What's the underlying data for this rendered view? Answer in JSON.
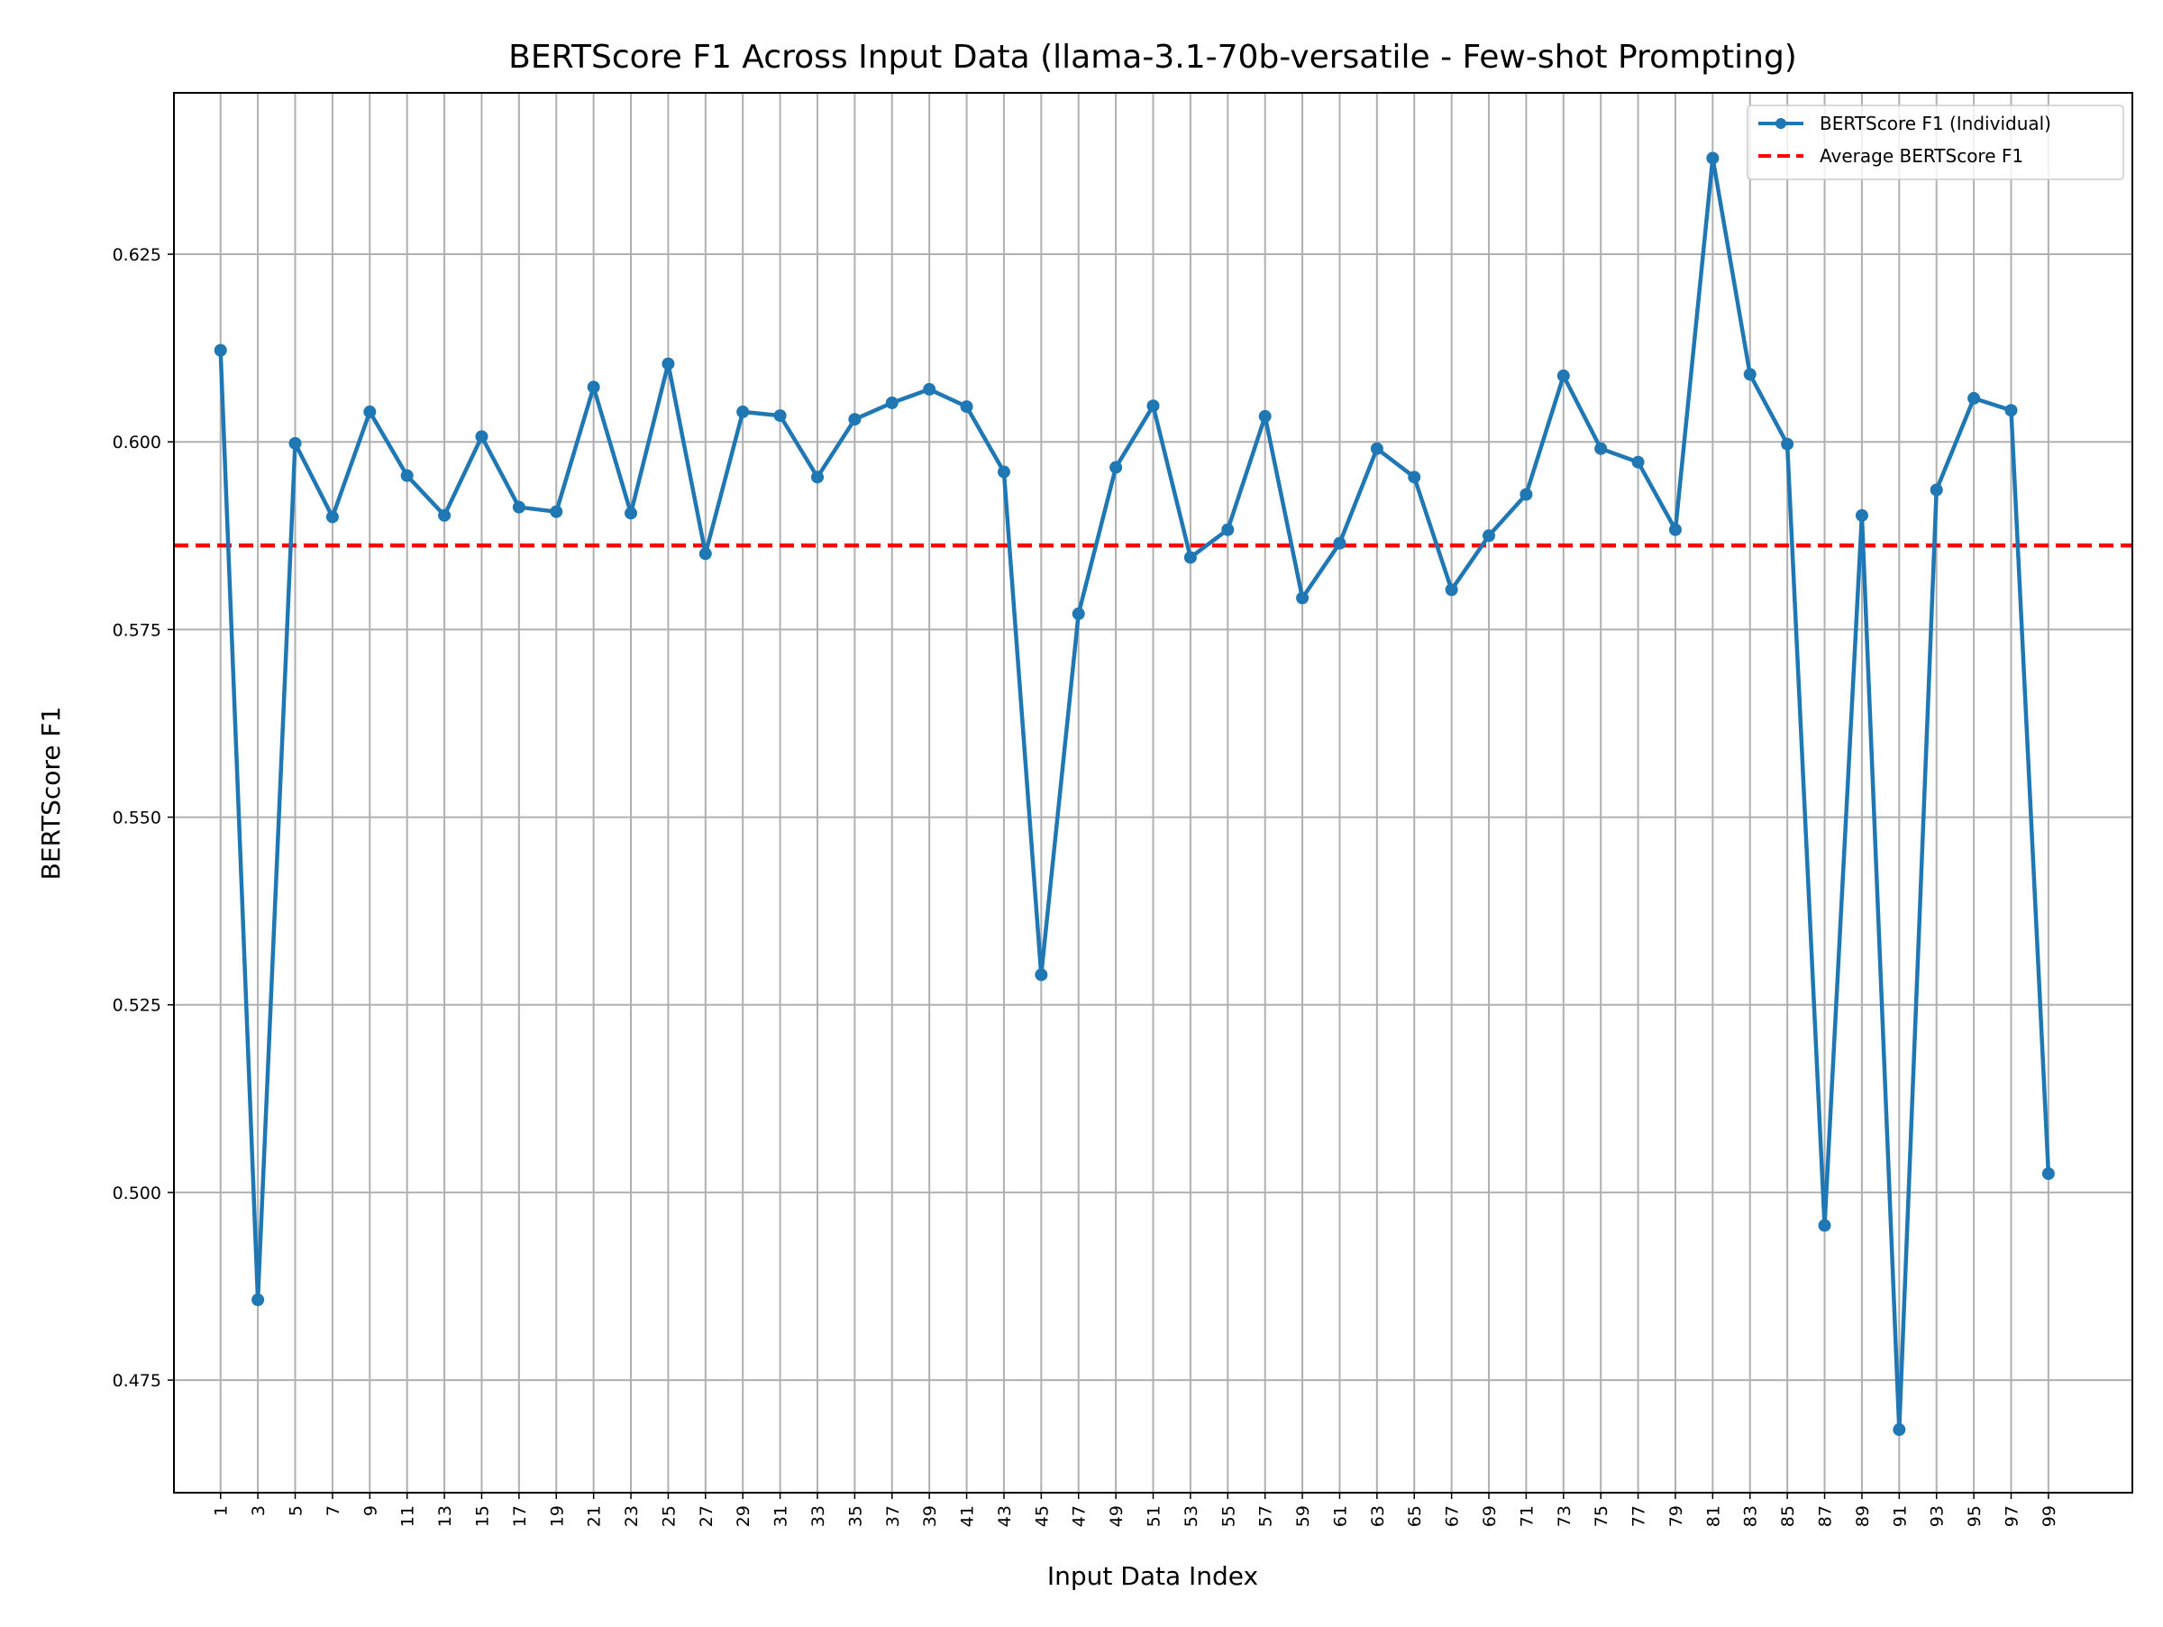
{
  "chart_data": {
    "type": "line",
    "title": "BERTScore F1 Across Input Data (llama-3.1-70b-versatile - Few-shot Prompting)",
    "xlabel": "Input Data Index",
    "ylabel": "BERTScore F1",
    "xlim": [
      -1.5,
      103.5
    ],
    "ylim": [
      0.46,
      0.6465
    ],
    "x_ticks": [
      "1",
      "3",
      "5",
      "7",
      "9",
      "11",
      "13",
      "15",
      "17",
      "19",
      "21",
      "23",
      "25",
      "27",
      "29",
      "31",
      "33",
      "35",
      "37",
      "39",
      "41",
      "43",
      "45",
      "47",
      "49",
      "51",
      "53",
      "55",
      "57",
      "59",
      "61",
      "63",
      "65",
      "67",
      "69",
      "71",
      "73",
      "75",
      "77",
      "79",
      "81",
      "83",
      "85",
      "87",
      "89",
      "91",
      "93",
      "95",
      "97",
      "99"
    ],
    "y_ticks": [
      0.475,
      0.5,
      0.525,
      0.55,
      0.575,
      0.6,
      0.625
    ],
    "y_tick_labels": [
      "0.475",
      "0.500",
      "0.525",
      "0.550",
      "0.575",
      "0.600",
      "0.625"
    ],
    "grid": true,
    "legend_position": "top-right",
    "series": [
      {
        "name": "BERTScore F1 (Individual)",
        "color": "#1f77b4",
        "style": "solid-with-markers",
        "x": [
          1,
          3,
          5,
          7,
          9,
          11,
          13,
          15,
          17,
          19,
          21,
          23,
          25,
          27,
          29,
          31,
          33,
          35,
          37,
          39,
          41,
          43,
          45,
          47,
          49,
          51,
          53,
          55,
          57,
          59,
          61,
          63,
          65,
          67,
          69,
          71,
          73,
          75,
          77,
          79,
          81,
          83,
          85,
          87,
          89,
          91,
          93,
          95,
          97,
          99
        ],
        "values": [
          0.6122,
          0.4857,
          0.5998,
          0.59,
          0.604,
          0.5955,
          0.5902,
          0.6007,
          0.5913,
          0.5907,
          0.6073,
          0.5905,
          0.6104,
          0.5851,
          0.604,
          0.6035,
          0.5953,
          0.603,
          0.6052,
          0.607,
          0.6047,
          0.596,
          0.529,
          0.5771,
          0.5966,
          0.6048,
          0.5846,
          0.5883,
          0.6034,
          0.5792,
          0.5865,
          0.5991,
          0.5953,
          0.5803,
          0.5875,
          0.593,
          0.6088,
          0.5991,
          0.5973,
          0.5883,
          0.6378,
          0.609,
          0.5997,
          0.4956,
          0.5902,
          0.4684,
          0.5936,
          0.6058,
          0.6042,
          0.5025
        ]
      },
      {
        "name": "Average BERTScore F1",
        "color": "#ff0000",
        "style": "dashed",
        "value": 0.5862
      }
    ]
  }
}
